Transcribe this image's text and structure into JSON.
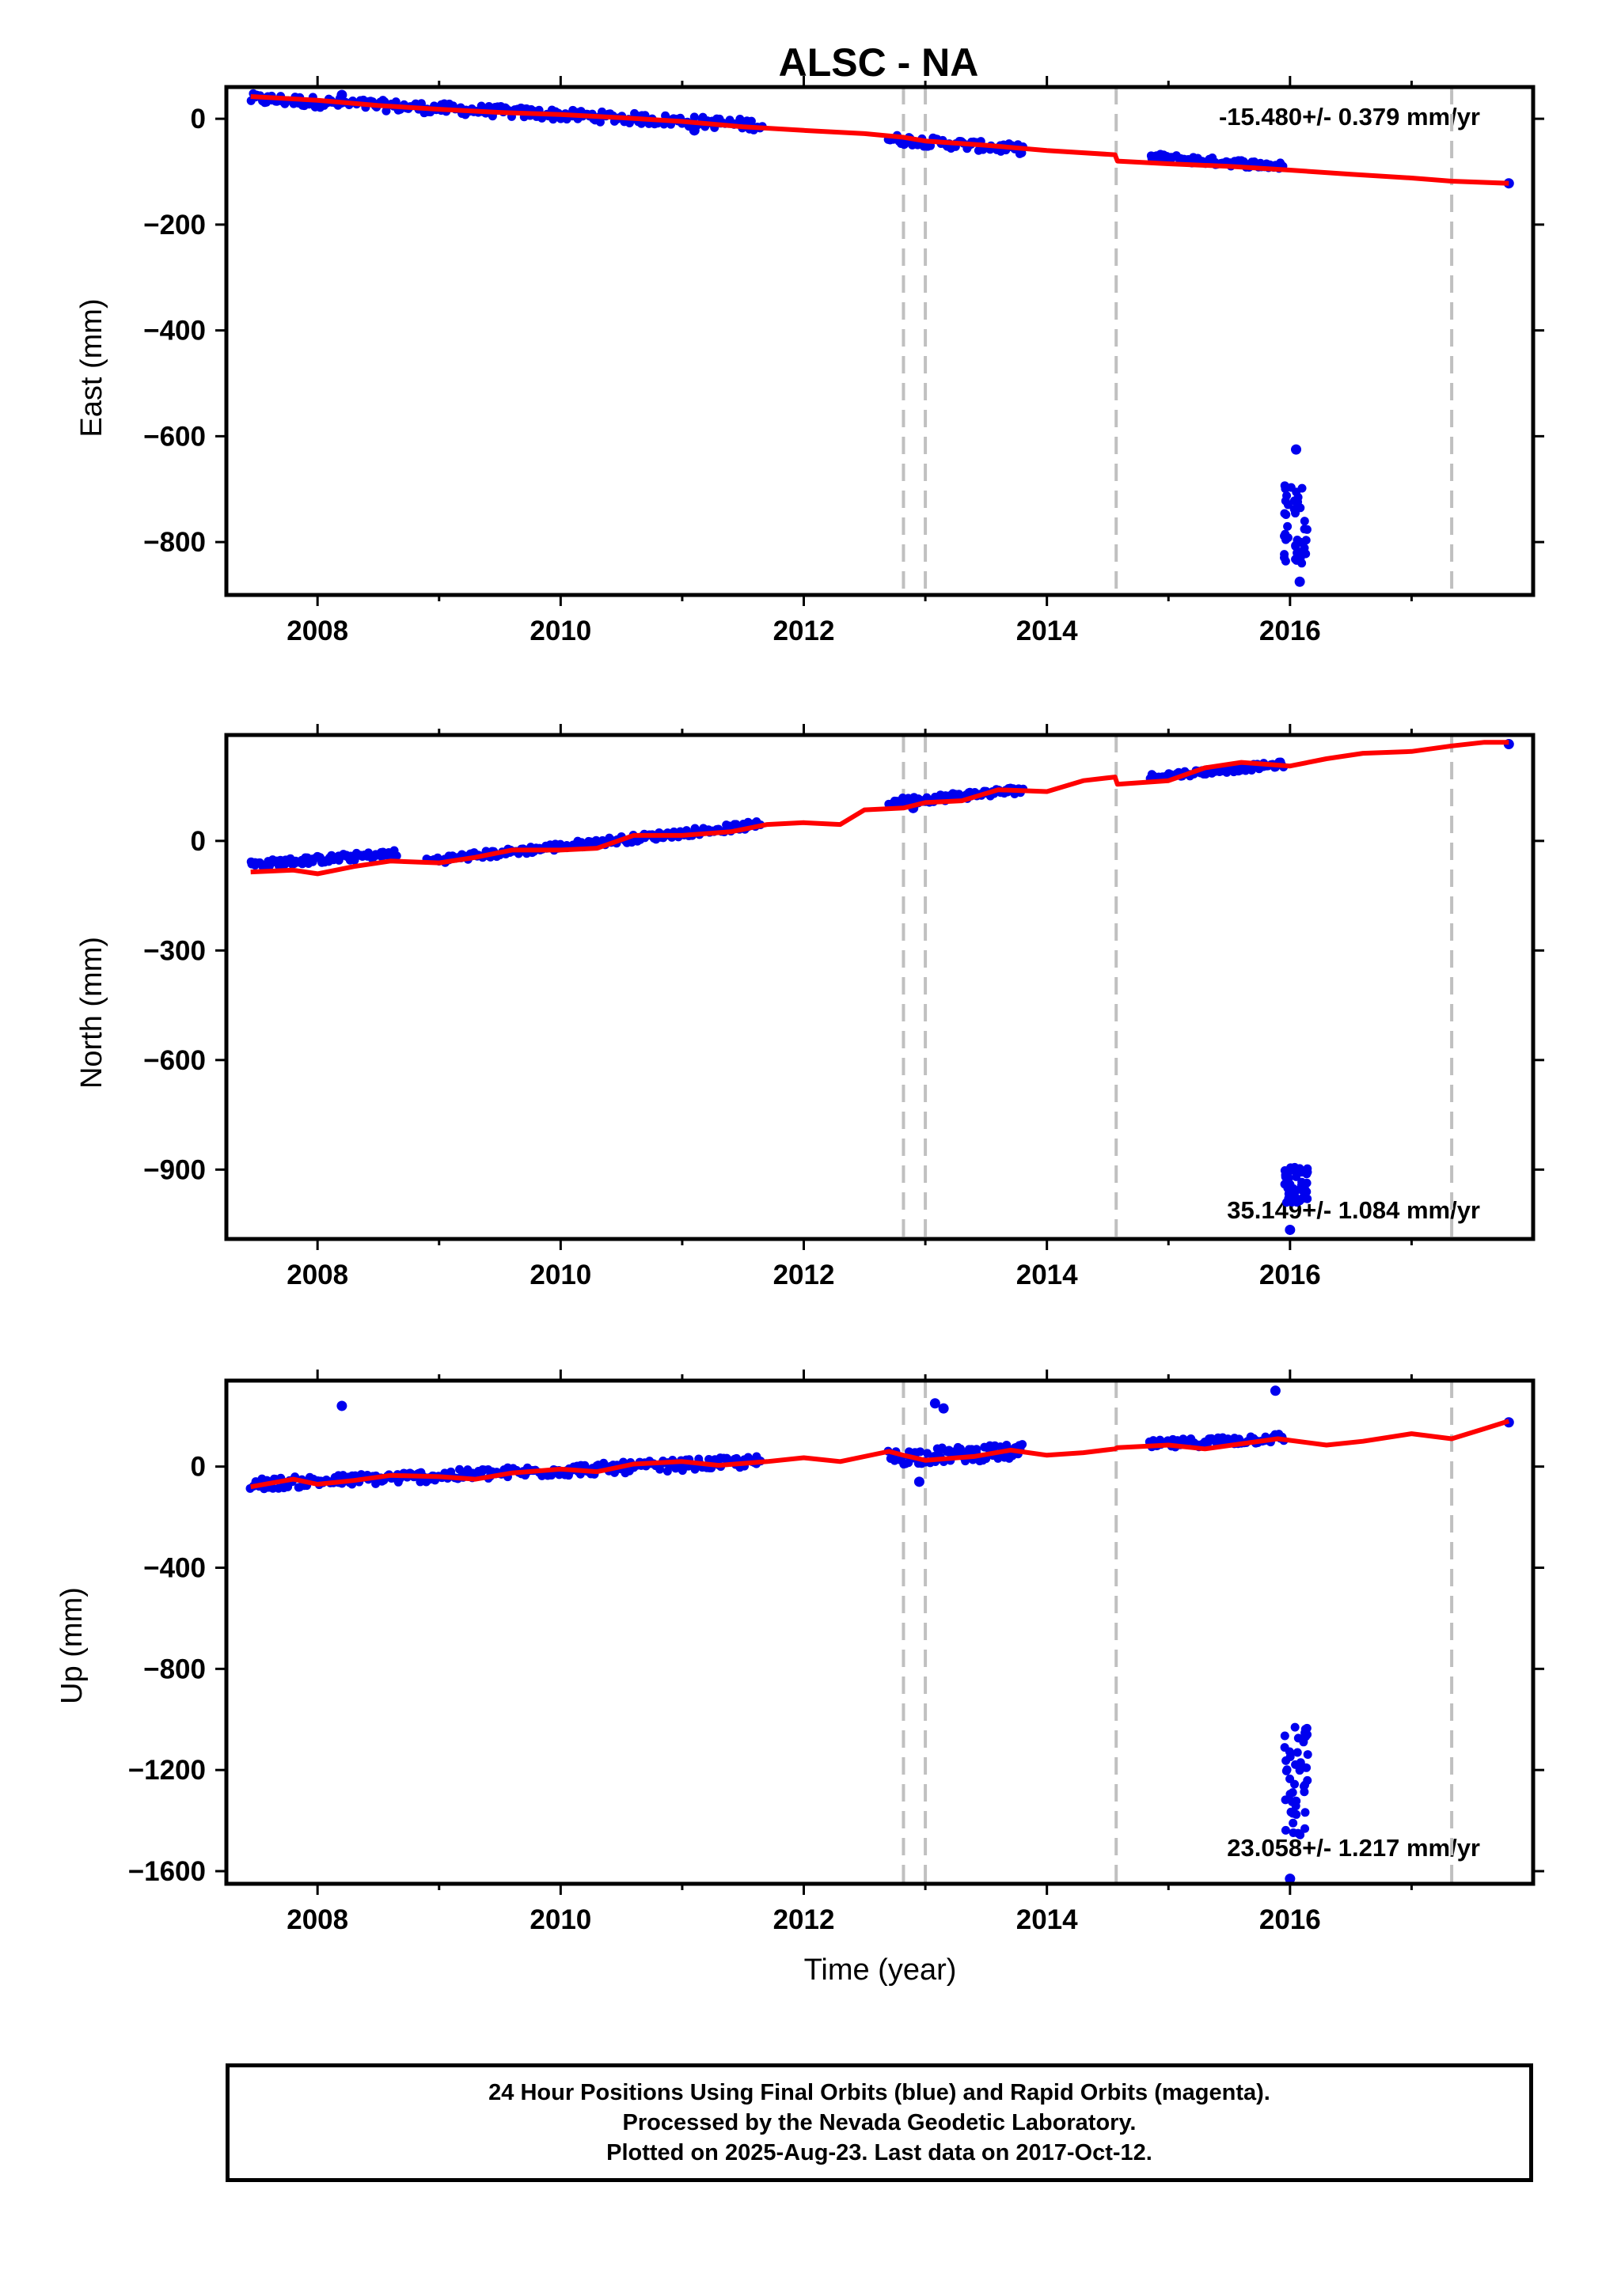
{
  "chart_data": {
    "type": "scatter",
    "title": "ALSC - NA",
    "xlabel": "Time (year)",
    "x_tick_labels": [
      "2008",
      "2010",
      "2012",
      "2014",
      "2016"
    ],
    "xlim": [
      2007.25,
      2018.0
    ],
    "colors": {
      "positions": "#0000ee",
      "model": "#ff0000",
      "steps": "#c0c0c0",
      "frame": "#000000"
    },
    "step_epochs": [
      2012.82,
      2013.0,
      2014.57,
      2017.33
    ],
    "panels": [
      {
        "component": "east",
        "ylabel": "East (mm)",
        "ylim": [
          -900,
          60
        ],
        "y_ticks": [
          0,
          -200,
          -400,
          -600,
          -800
        ],
        "y_tick_labels": [
          "0",
          "−200",
          "−400",
          "−600",
          "−800"
        ],
        "rate_label": "-15.480+/- 0.379 mm/yr",
        "rate_position": "top-right",
        "model_line": {
          "x": [
            2007.45,
            2008.0,
            2008.5,
            2009.0,
            2009.5,
            2010.0,
            2010.5,
            2011.0,
            2011.5,
            2012.0,
            2012.5,
            2012.82,
            2013.0,
            2013.5,
            2014.0,
            2014.56,
            2014.58,
            2015.0,
            2015.5,
            2016.0,
            2016.5,
            2017.0,
            2017.33,
            2017.8
          ],
          "y": [
            42,
            35,
            25,
            18,
            12,
            8,
            2,
            -5,
            -15,
            -22,
            -28,
            -35,
            -42,
            -50,
            -60,
            -68,
            -80,
            -85,
            -90,
            -97,
            -105,
            -112,
            -118,
            -122
          ]
        },
        "groups": [
          {
            "x": [
              2007.45,
              2011.65
            ],
            "y": [
              38,
              -12
            ],
            "spread": 10,
            "n": 230
          },
          {
            "x": [
              2012.7,
              2013.8
            ],
            "y": [
              -38,
              -58
            ],
            "spread": 9,
            "n": 70
          },
          {
            "x": [
              2014.85,
              2015.95
            ],
            "y": [
              -72,
              -90
            ],
            "spread": 7,
            "n": 70
          }
        ],
        "outlier_groups": [
          {
            "x": [
              2015.95,
              2016.15
            ],
            "y": [
              -840,
              -680
            ],
            "n": 40
          }
        ],
        "extra_points": [
          {
            "x": 2008.2,
            "y": 45
          },
          {
            "x": 2011.1,
            "y": -22
          },
          {
            "x": 2017.8,
            "y": -122
          },
          {
            "x": 2016.08,
            "y": -875
          },
          {
            "x": 2016.05,
            "y": -625
          }
        ]
      },
      {
        "component": "north",
        "ylabel": "North (mm)",
        "ylim": [
          -1090,
          290
        ],
        "y_ticks": [
          0,
          -300,
          -600,
          -900
        ],
        "y_tick_labels": [
          "0",
          "−300",
          "−600",
          "−900"
        ],
        "rate_label": "35.149+/- 1.084 mm/yr",
        "rate_position": "bottom-right",
        "model_line": {
          "x": [
            2007.45,
            2007.8,
            2008.0,
            2008.3,
            2008.6,
            2009.0,
            2009.3,
            2009.6,
            2010.0,
            2010.3,
            2010.6,
            2011.0,
            2011.4,
            2011.7,
            2012.0,
            2012.3,
            2012.5,
            2012.82,
            2013.0,
            2013.3,
            2013.6,
            2014.0,
            2014.3,
            2014.56,
            2014.58,
            2015.0,
            2015.3,
            2015.6,
            2016.0,
            2016.3,
            2016.6,
            2017.0,
            2017.33,
            2017.6,
            2017.8
          ],
          "y": [
            -85,
            -80,
            -90,
            -70,
            -55,
            -60,
            -45,
            -25,
            -25,
            -20,
            15,
            15,
            25,
            45,
            50,
            45,
            85,
            90,
            105,
            110,
            140,
            135,
            165,
            175,
            155,
            165,
            200,
            215,
            205,
            225,
            240,
            245,
            260,
            270,
            270
          ]
        },
        "groups": [
          {
            "x": [
              2007.45,
              2008.65
            ],
            "y": [
              -65,
              -35
            ],
            "spread": 10,
            "n": 90
          },
          {
            "x": [
              2008.9,
              2011.65
            ],
            "y": [
              -55,
              45
            ],
            "spread": 10,
            "n": 160
          },
          {
            "x": [
              2012.7,
              2013.8
            ],
            "y": [
              105,
              140
            ],
            "spread": 10,
            "n": 80
          },
          {
            "x": [
              2014.85,
              2015.95
            ],
            "y": [
              175,
              210
            ],
            "spread": 8,
            "n": 70
          }
        ],
        "outlier_groups": [
          {
            "x": [
              2015.95,
              2016.15
            ],
            "y": [
              -990,
              -890
            ],
            "n": 40
          }
        ],
        "extra_points": [
          {
            "x": 2017.8,
            "y": 265
          },
          {
            "x": 2016.0,
            "y": -1065
          },
          {
            "x": 2012.9,
            "y": 90
          }
        ]
      },
      {
        "component": "up",
        "ylabel": "Up (mm)",
        "ylim": [
          -1650,
          340
        ],
        "y_ticks": [
          0,
          -400,
          -800,
          -1200,
          -1600
        ],
        "y_tick_labels": [
          "0",
          "−400",
          "−800",
          "−1200",
          "−1600"
        ],
        "rate_label": "23.058+/- 1.217 mm/yr",
        "rate_position": "bottom-right",
        "model_line": {
          "x": [
            2007.45,
            2007.8,
            2008.0,
            2008.3,
            2008.6,
            2009.0,
            2009.3,
            2009.6,
            2010.0,
            2010.3,
            2010.6,
            2011.0,
            2011.3,
            2011.7,
            2012.0,
            2012.3,
            2012.7,
            2012.82,
            2013.0,
            2013.4,
            2013.7,
            2014.0,
            2014.3,
            2014.56,
            2014.58,
            2015.0,
            2015.3,
            2015.6,
            2015.9,
            2016.3,
            2016.6,
            2017.0,
            2017.33,
            2017.6,
            2017.8
          ],
          "y": [
            -80,
            -50,
            -70,
            -55,
            -35,
            -40,
            -50,
            -25,
            -10,
            -20,
            10,
            20,
            5,
            20,
            35,
            20,
            60,
            45,
            25,
            40,
            65,
            45,
            55,
            70,
            75,
            85,
            70,
            90,
            110,
            85,
            100,
            130,
            110,
            150,
            180
          ]
        },
        "groups": [
          {
            "x": [
              2007.45,
              2011.65
            ],
            "y": [
              -70,
              20
            ],
            "spread": 22,
            "n": 260
          },
          {
            "x": [
              2012.7,
              2013.8
            ],
            "y": [
              35,
              60
            ],
            "spread": 30,
            "n": 80
          },
          {
            "x": [
              2014.85,
              2015.95
            ],
            "y": [
              85,
              115
            ],
            "spread": 18,
            "n": 70
          }
        ],
        "outlier_groups": [
          {
            "x": [
              2015.95,
              2016.15
            ],
            "y": [
              -1500,
              -1020
            ],
            "n": 45
          }
        ],
        "extra_points": [
          {
            "x": 2008.2,
            "y": 240
          },
          {
            "x": 2013.08,
            "y": 250
          },
          {
            "x": 2013.15,
            "y": 230
          },
          {
            "x": 2015.88,
            "y": 300
          },
          {
            "x": 2012.95,
            "y": -60
          },
          {
            "x": 2016.0,
            "y": -1630
          },
          {
            "x": 2017.8,
            "y": 175
          }
        ]
      }
    ]
  },
  "footer": {
    "line1": "24 Hour Positions Using Final Orbits (blue) and Rapid Orbits (magenta).",
    "line2": "Processed by the Nevada Geodetic Laboratory.",
    "line3": "Plotted on 2025-Aug-23. Last data on 2017-Oct-12."
  }
}
